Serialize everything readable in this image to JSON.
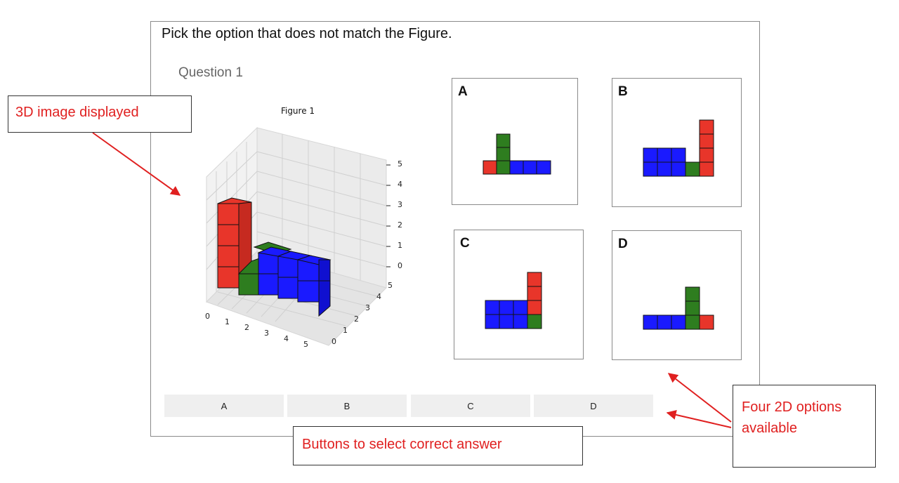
{
  "prompt": "Pick the option that does not match the Figure.",
  "question_label": "Question 1",
  "figure": {
    "title": "Figure 1",
    "z_ticks": [
      "0",
      "1",
      "2",
      "3",
      "4",
      "5"
    ],
    "x_ticks": [
      "0",
      "1",
      "2",
      "3",
      "4",
      "5"
    ],
    "y_ticks": [
      "0",
      "1",
      "2",
      "3",
      "4",
      "5"
    ],
    "colors": {
      "red": "#e8352a",
      "green": "#2e7d1f",
      "blue": "#1a1aff"
    }
  },
  "options": [
    {
      "letter": "A"
    },
    {
      "letter": "B"
    },
    {
      "letter": "C"
    },
    {
      "letter": "D"
    }
  ],
  "buttons": [
    "A",
    "B",
    "C",
    "D"
  ],
  "callouts": {
    "image": "3D image displayed",
    "buttons": "Buttons to select correct answer",
    "options": "Four 2D options available"
  },
  "annotation_color": "#e02020"
}
